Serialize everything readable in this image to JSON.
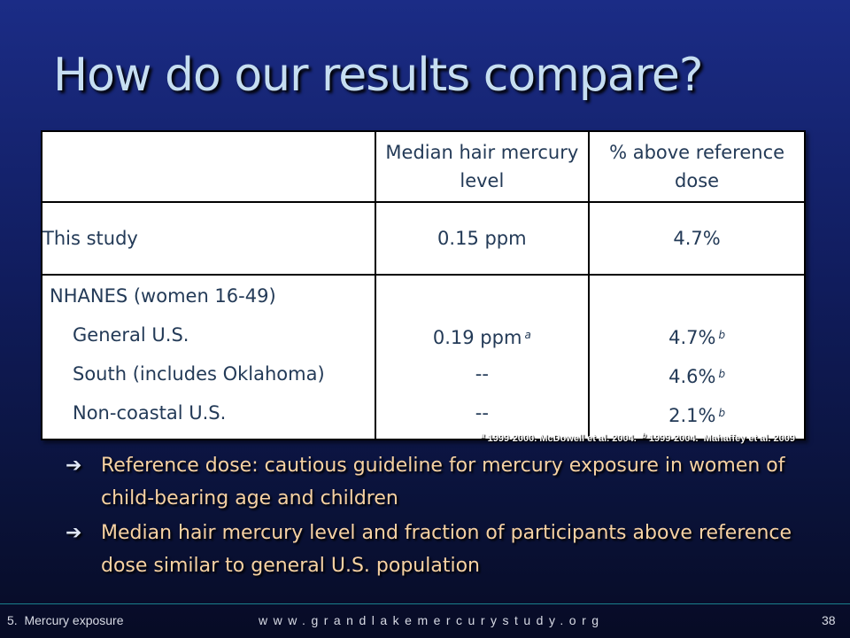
{
  "title": "How do our results compare?",
  "table": {
    "headers": [
      "",
      "Median hair mercury level",
      "% above reference dose"
    ],
    "rows": [
      {
        "label": "This study",
        "median": "0.15 ppm",
        "percent": "4.7%"
      }
    ],
    "nhanes": {
      "label": "NHANES (women 16-49)",
      "subrows": [
        {
          "label": "General U.S.",
          "median": "0.19 ppm",
          "median_note": "a",
          "percent": "4.7%",
          "percent_note": "b"
        },
        {
          "label": "South (includes Oklahoma)",
          "median": "--",
          "median_note": "",
          "percent": "4.6%",
          "percent_note": "b"
        },
        {
          "label": "Non-coastal U.S.",
          "median": "--",
          "median_note": "",
          "percent": "2.1%",
          "percent_note": "b"
        }
      ]
    }
  },
  "footnote": {
    "a_mark": "a",
    "a_text": " 1999-2000. McDowell et al. 2004.  ",
    "b_mark": "b",
    "b_text": " 1999-2004.  Mahaffey et al. 2009"
  },
  "bullets": [
    "Reference dose: cautious guideline for mercury exposure in women of child-bearing age and children",
    "Median hair mercury level and fraction of participants above reference dose similar to general U.S. population"
  ],
  "footer": {
    "section": "5.  Mercury exposure",
    "url": "www.grandlakemercurystudy.org",
    "page": "38"
  },
  "icons": {
    "bullet": "arrow-right-icon"
  }
}
